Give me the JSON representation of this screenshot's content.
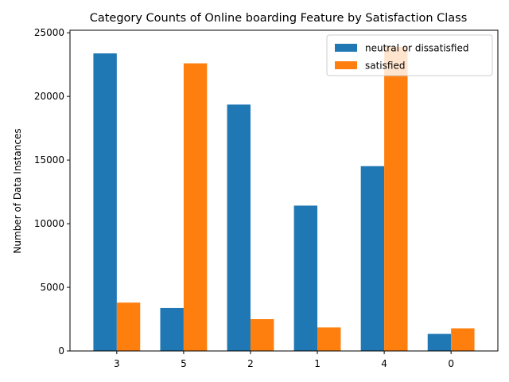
{
  "chart_data": {
    "type": "bar",
    "title": "Category Counts of Online boarding Feature by Satisfaction Class",
    "xlabel": "",
    "ylabel": "Number of Data Instances",
    "categories": [
      "3",
      "5",
      "2",
      "1",
      "4",
      "0"
    ],
    "series": [
      {
        "name": "neutral or dissatisfied",
        "color": "#1f77b4",
        "values": [
          23380,
          3380,
          19360,
          11420,
          14520,
          1340
        ]
      },
      {
        "name": "satisfied",
        "color": "#ff7f0e",
        "values": [
          3800,
          22600,
          2500,
          1850,
          23900,
          1780
        ]
      }
    ],
    "ylim": [
      0,
      25200
    ],
    "yticks": [
      0,
      5000,
      10000,
      15000,
      20000,
      25000
    ],
    "legend_position": "top-right",
    "grid": false
  }
}
